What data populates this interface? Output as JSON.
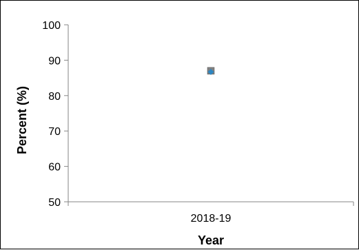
{
  "chart_data": {
    "type": "scatter",
    "xlabel": "Year",
    "ylabel": "Percent (%)",
    "categories": [
      "2018-19"
    ],
    "series": [
      {
        "values": [
          87.0
        ],
        "color": "#808080",
        "marker": "square"
      },
      {
        "values": [
          86.7
        ],
        "color": "#2e86c1",
        "marker": "diamond"
      }
    ],
    "ylim": [
      50,
      100
    ],
    "yticks": [
      50,
      60,
      70,
      80,
      90,
      100
    ],
    "grid": false,
    "legend": "none"
  }
}
